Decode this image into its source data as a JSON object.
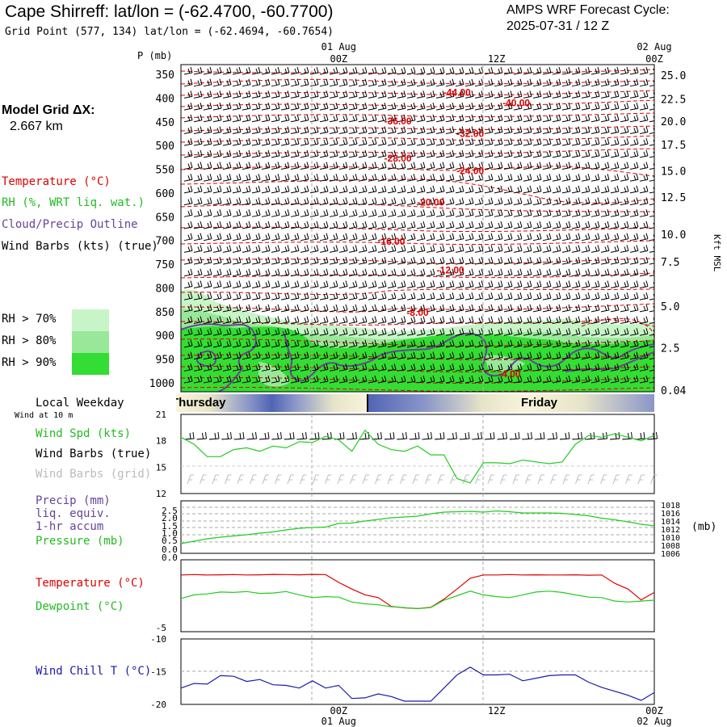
{
  "header": {
    "title": "Cape Shirreff:  lat/lon = (-62.4700, -60.7700)",
    "grid_point": "Grid Point (577, 134) lat/lon = (-62.4694, -60.7654)",
    "cycle_line1": "AMPS WRF Forecast Cycle:",
    "cycle_line2": "2025-07-31 / 12  Z",
    "model_grid_label": "Model Grid ΔX:",
    "model_grid_value": "2.667 km"
  },
  "legend": {
    "temperature": "Temperature (°C)",
    "rh": "RH (%, WRT liq. wat.)",
    "cloud": "Cloud/Precip Outline",
    "wind": "Wind Barbs (kts) (true)",
    "rh_levels": [
      {
        "label": "RH > 70%",
        "color": "#c8f5c8"
      },
      {
        "label": "RH > 80%",
        "color": "#99e899"
      },
      {
        "label": "RH > 90%",
        "color": "#33dd33"
      }
    ]
  },
  "colors": {
    "temperature": "#dd0000",
    "dewpoint": "#22cc22",
    "rh_outline": "#664499",
    "pressure": "#22cc22",
    "wind_speed": "#22cc22",
    "wind_chill": "#1a1aaa",
    "grid_barbs": "#bbbbbb"
  },
  "chart_data": [
    {
      "type": "heatmap",
      "name": "sounding time-height cross section",
      "ylabel": "P (mb)",
      "y2label": "Kft MSL",
      "pressure_ticks": [
        350,
        400,
        450,
        500,
        550,
        600,
        650,
        700,
        750,
        800,
        850,
        900,
        950,
        1000
      ],
      "height_ticks": [
        "25.0",
        "22.5",
        "20.0",
        "17.5",
        "15.0",
        "12.5",
        "10.0",
        "7.5",
        "5.0",
        "2.5",
        "0.04"
      ],
      "height_tick_pressures": [
        352,
        402,
        449,
        498,
        553,
        609,
        687,
        745,
        838,
        926,
        1015
      ],
      "top_time_labels": [
        {
          "date": "01 Aug",
          "hour": "00Z",
          "hour_offset": 12
        },
        {
          "date": "",
          "hour": "12Z",
          "hour_offset": 24
        },
        {
          "date": "02 Aug",
          "hour": "00Z",
          "hour_offset": 36
        }
      ],
      "x_range_hours": [
        0,
        36
      ],
      "temperature_labels": [
        {
          "text": "-44.00",
          "hour": 21.0,
          "p": 388
        },
        {
          "text": "-40.00",
          "hour": 25.5,
          "p": 410
        },
        {
          "text": "-36.00",
          "hour": 16.5,
          "p": 449
        },
        {
          "text": "-32.00",
          "hour": 22.0,
          "p": 475
        },
        {
          "text": "-28.00",
          "hour": 16.5,
          "p": 527
        },
        {
          "text": "-24.00",
          "hour": 22.0,
          "p": 553
        },
        {
          "text": "-20.00",
          "hour": 19.0,
          "p": 620
        },
        {
          "text": "-16.00",
          "hour": 16.0,
          "p": 702
        },
        {
          "text": "-12.00",
          "hour": 20.5,
          "p": 763
        },
        {
          "text": "-8.00",
          "hour": 18.0,
          "p": 852
        },
        {
          "text": "-4.00",
          "hour": 25.0,
          "p": 981
        }
      ]
    },
    {
      "type": "line",
      "name": "surface wind",
      "subtitle_left": "Local Weekday",
      "weekdays": [
        "Thursday",
        "Friday"
      ],
      "wind_caption": "Wind at 10 m",
      "series_labels": [
        "Wind Spd (kts)",
        "Wind Barbs (true)",
        "Wind Barbs (grid)"
      ],
      "ylim": [
        12,
        21
      ],
      "y_ticks": [
        12,
        15,
        18,
        21
      ],
      "x": [
        0,
        1,
        2,
        3,
        4,
        5,
        6,
        7,
        8,
        9,
        10,
        11,
        12,
        13,
        14,
        15,
        16,
        17,
        18,
        19,
        20,
        21,
        22,
        23,
        24,
        25,
        26,
        27,
        28,
        29,
        30,
        31,
        32,
        33,
        34,
        35,
        36
      ],
      "wind_speed": [
        18.4,
        17.6,
        16.2,
        16.2,
        17.0,
        17.2,
        16.8,
        17.4,
        17.2,
        17.9,
        17.8,
        18.5,
        18.1,
        16.8,
        19.2,
        17.6,
        17.0,
        16.8,
        17.4,
        16.4,
        16.4,
        13.7,
        13.2,
        15.5,
        15.5,
        15.4,
        15.8,
        15.6,
        15.4,
        15.6,
        17.6,
        18.6,
        18.4,
        18.8,
        18.4,
        18.0,
        18.6
      ]
    },
    {
      "type": "line",
      "name": "precipitation and pressure",
      "series_labels": [
        "Precip (mm)",
        "liq. equiv.",
        "1-hr accum",
        "Pressure (mb)"
      ],
      "precip_ticks": [
        "0.0",
        "0.0",
        "0.5",
        "1.0",
        "1.5",
        "2.0",
        "2.5"
      ],
      "pressure_ticks": [
        1006,
        1008,
        1010,
        1012,
        1014,
        1016,
        1018
      ],
      "y2label": "(mb)",
      "pressure_ylim": [
        1006,
        1019
      ],
      "x": [
        0,
        1,
        2,
        3,
        4,
        5,
        6,
        7,
        8,
        9,
        10,
        11,
        12,
        13,
        14,
        15,
        16,
        17,
        18,
        19,
        20,
        21,
        22,
        23,
        24,
        25,
        26,
        27,
        28,
        29,
        30,
        31,
        32,
        33,
        34,
        35,
        36
      ],
      "pressure": [
        1008.4,
        1009.0,
        1009.6,
        1010.0,
        1010.3,
        1010.6,
        1011.0,
        1011.3,
        1011.8,
        1012.2,
        1012.4,
        1012.5,
        1013.4,
        1013.5,
        1014.0,
        1014.4,
        1014.8,
        1015.0,
        1015.2,
        1015.8,
        1016.2,
        1016.3,
        1016.4,
        1016.2,
        1016.5,
        1016.3,
        1016.0,
        1016.0,
        1016.0,
        1015.9,
        1015.6,
        1015.3,
        1014.7,
        1014.3,
        1013.8,
        1013.2,
        1012.8
      ],
      "precip": [
        0,
        0,
        0,
        0,
        0,
        0,
        0,
        0,
        0,
        0,
        0,
        0,
        0,
        0,
        0,
        0,
        0,
        0,
        0,
        0,
        0,
        0,
        0,
        0,
        0,
        0,
        0,
        0,
        0,
        0,
        0,
        0,
        0,
        0,
        0,
        0,
        0
      ]
    },
    {
      "type": "line",
      "name": "temperature and dewpoint",
      "series_labels": [
        "Temperature (°C)",
        "Dewpoint (°C)"
      ],
      "y_ticks": [
        -5
      ],
      "ylim": [
        -5.4,
        1.6
      ],
      "x": [
        0,
        1,
        2,
        3,
        4,
        5,
        6,
        7,
        8,
        9,
        10,
        11,
        12,
        13,
        14,
        15,
        16,
        17,
        18,
        19,
        20,
        21,
        22,
        23,
        24,
        25,
        26,
        27,
        28,
        29,
        30,
        31,
        32,
        33,
        34,
        35,
        36
      ],
      "temperature": [
        0.12,
        0.16,
        0.12,
        0.14,
        0.16,
        0.12,
        0.14,
        0.18,
        0.16,
        0.14,
        0.18,
        0.16,
        -0.6,
        -1.25,
        -1.81,
        -2.08,
        -2.94,
        -3.08,
        -3.15,
        -3.03,
        -2.24,
        -1.25,
        -0.2,
        0.12,
        0.12,
        0.16,
        0.12,
        0.14,
        0.12,
        0.12,
        0.14,
        0.1,
        0.12,
        -0.7,
        -1.25,
        -2.31,
        -1.58
      ],
      "dewpoint": [
        -2.17,
        -1.81,
        -1.72,
        -1.54,
        -1.58,
        -1.49,
        -1.67,
        -1.63,
        -1.49,
        -1.81,
        -2.08,
        -1.99,
        -2.03,
        -2.51,
        -2.69,
        -2.78,
        -2.97,
        -3.06,
        -3.15,
        -3.06,
        -2.33,
        -1.9,
        -1.45,
        -1.81,
        -1.99,
        -2.08,
        -1.81,
        -1.54,
        -1.45,
        -1.58,
        -1.81,
        -2.03,
        -2.08,
        -2.42,
        -2.51,
        -2.42,
        -2.33
      ]
    },
    {
      "type": "line",
      "name": "wind chill",
      "series_labels": [
        "Wind Chill T (°C)"
      ],
      "y_ticks": [
        -10,
        -15,
        -20
      ],
      "ylim": [
        -20,
        -10
      ],
      "bottom_time_labels": [
        {
          "hour": "00Z",
          "date": "01 Aug",
          "hour_offset": 12
        },
        {
          "hour": "12Z",
          "date": "",
          "hour_offset": 24
        },
        {
          "hour": "00Z",
          "date": "02 Aug",
          "hour_offset": 36
        }
      ],
      "x": [
        0,
        1,
        2,
        3,
        4,
        5,
        6,
        7,
        8,
        9,
        10,
        11,
        12,
        13,
        14,
        15,
        16,
        17,
        18,
        19,
        20,
        21,
        22,
        23,
        24,
        25,
        26,
        27,
        28,
        29,
        30,
        31,
        32,
        33,
        34,
        35,
        36
      ],
      "wind_chill": [
        -17.5,
        -16.8,
        -16.9,
        -15.6,
        -15.7,
        -16.5,
        -16.2,
        -17.0,
        -17.1,
        -17.5,
        -16.4,
        -17.5,
        -17.1,
        -19.1,
        -19.0,
        -18.4,
        -18.8,
        -19.5,
        -19.5,
        -19.5,
        -17.5,
        -15.5,
        -14.3,
        -15.5,
        -15.5,
        -15.4,
        -16.4,
        -16.0,
        -15.6,
        -15.5,
        -15.5,
        -16.6,
        -17.4,
        -18.0,
        -18.6,
        -19.4,
        -18.2
      ]
    }
  ]
}
